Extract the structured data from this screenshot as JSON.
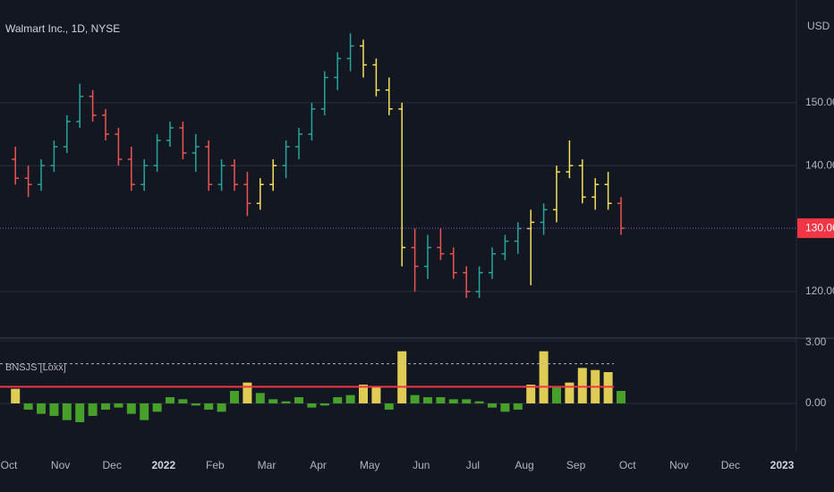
{
  "chart_data": {
    "type": "ohlc",
    "title": "Walmart Inc., 1D, NYSE",
    "currency": "USD",
    "categories": [
      "Oct",
      "Nov",
      "Dec",
      "2022",
      "Feb",
      "Mar",
      "Apr",
      "May",
      "Jun",
      "Jul",
      "Aug",
      "Sep",
      "Oct",
      "Nov",
      "Dec",
      "2023"
    ],
    "bars_per_category": 4,
    "ohlc": [
      [
        141,
        143,
        137,
        138
      ],
      [
        138,
        140,
        135,
        137
      ],
      [
        137,
        141,
        136,
        140
      ],
      [
        140,
        144,
        139,
        143
      ],
      [
        143,
        148,
        142,
        147
      ],
      [
        147,
        153,
        146,
        151
      ],
      [
        151,
        152,
        147,
        148
      ],
      [
        148,
        149,
        144,
        145
      ],
      [
        145,
        146,
        140,
        141
      ],
      [
        141,
        143,
        136,
        137
      ],
      [
        137,
        141,
        136,
        140
      ],
      [
        140,
        145,
        139,
        144
      ],
      [
        144,
        147,
        143,
        146
      ],
      [
        146,
        147,
        141,
        142
      ],
      [
        142,
        145,
        139,
        143
      ],
      [
        143,
        144,
        136,
        137
      ],
      [
        137,
        141,
        136,
        140
      ],
      [
        140,
        141,
        136,
        137
      ],
      [
        137,
        139,
        132,
        134
      ],
      [
        134,
        138,
        133,
        137
      ],
      [
        137,
        141,
        136,
        140
      ],
      [
        140,
        144,
        138,
        143
      ],
      [
        143,
        146,
        141,
        145
      ],
      [
        145,
        150,
        144,
        149
      ],
      [
        149,
        155,
        148,
        154
      ],
      [
        154,
        158,
        152,
        157
      ],
      [
        157,
        161,
        155,
        159
      ],
      [
        159,
        160,
        154,
        156
      ],
      [
        156,
        157,
        151,
        152
      ],
      [
        152,
        154,
        148,
        149
      ],
      [
        149,
        150,
        124,
        127
      ],
      [
        127,
        130,
        120,
        124
      ],
      [
        124,
        129,
        122,
        127
      ],
      [
        127,
        130,
        125,
        126
      ],
      [
        126,
        127,
        122,
        123
      ],
      [
        123,
        124,
        119,
        120
      ],
      [
        120,
        124,
        119,
        123
      ],
      [
        123,
        127,
        122,
        126
      ],
      [
        126,
        129,
        125,
        128
      ],
      [
        128,
        131,
        126,
        130
      ],
      [
        130,
        133,
        121,
        131
      ],
      [
        131,
        134,
        129,
        133
      ],
      [
        133,
        140,
        131,
        139
      ],
      [
        139,
        144,
        138,
        140
      ],
      [
        140,
        141,
        134,
        135
      ],
      [
        135,
        138,
        133,
        137
      ],
      [
        137,
        139,
        133,
        134
      ],
      [
        134,
        135,
        129,
        130.06
      ]
    ],
    "bar_colors": [
      "down",
      "down",
      "up",
      "up",
      "up",
      "up",
      "down",
      "down",
      "down",
      "down",
      "up",
      "up",
      "up",
      "down",
      "up",
      "down",
      "up",
      "down",
      "down",
      "yellow",
      "yellow",
      "up",
      "up",
      "up",
      "up",
      "up",
      "up",
      "yellow",
      "yellow",
      "yellow",
      "yellow",
      "down",
      "up",
      "down",
      "down",
      "down",
      "up",
      "up",
      "up",
      "up",
      "yellow",
      "up",
      "yellow",
      "yellow",
      "yellow",
      "yellow",
      "yellow",
      "down"
    ],
    "palette": {
      "up": "#26a69a",
      "down": "#ef5350",
      "yellow": "#f5e05a"
    },
    "ylim": [
      112.6,
      166.3
    ],
    "yticks": [
      {
        "value": 120,
        "label": "120.00"
      },
      {
        "value": 140,
        "label": "140.00"
      },
      {
        "value": 150,
        "label": "150.00"
      }
    ],
    "last_price_color": "#f23645",
    "indicator": {
      "title": "BNSJS [Loxx]",
      "values": [
        0.7,
        -0.3,
        -0.5,
        -0.6,
        -0.8,
        -0.9,
        -0.6,
        -0.3,
        -0.2,
        -0.5,
        -0.8,
        -0.4,
        0.3,
        0.2,
        -0.1,
        -0.3,
        -0.4,
        0.6,
        1.0,
        0.5,
        0.2,
        0.1,
        0.3,
        -0.2,
        -0.1,
        0.3,
        0.4,
        0.9,
        0.8,
        -0.3,
        2.5,
        0.4,
        0.3,
        0.3,
        0.2,
        0.2,
        0.1,
        -0.2,
        -0.4,
        -0.3,
        0.9,
        2.5,
        0.8,
        1.0,
        1.7,
        1.6,
        1.5,
        0.6
      ],
      "colors": [
        "yellow",
        "green",
        "green",
        "green",
        "green",
        "green",
        "green",
        "green",
        "green",
        "green",
        "green",
        "green",
        "green",
        "green",
        "green",
        "green",
        "green",
        "green",
        "yellow",
        "green",
        "green",
        "green",
        "green",
        "green",
        "green",
        "green",
        "green",
        "yellow",
        "yellow",
        "green",
        "yellow",
        "green",
        "green",
        "green",
        "green",
        "green",
        "green",
        "green",
        "green",
        "green",
        "yellow",
        "yellow",
        "green",
        "yellow",
        "yellow",
        "yellow",
        "yellow",
        "green"
      ],
      "palette": {
        "green": "#4caf2a",
        "yellow": "#f5e05a"
      },
      "level": 0.8,
      "level_color": "#f23645",
      "upper": 1.9,
      "ylim": [
        -1.46,
        3.13
      ],
      "yticks": [
        {
          "value": 3,
          "label": "3.00"
        },
        {
          "value": 0,
          "label": "0.00"
        }
      ]
    }
  }
}
